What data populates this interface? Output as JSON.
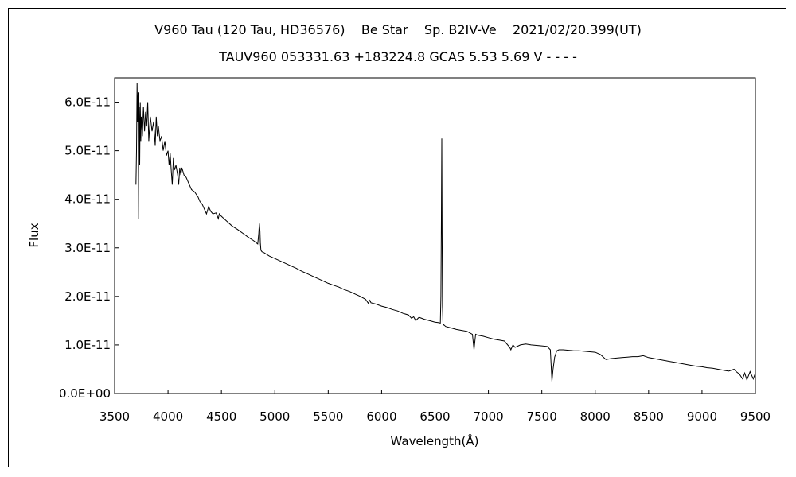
{
  "chart_data": {
    "type": "line",
    "title": "V960 Tau (120 Tau, HD36576)    Be Star    Sp. B2IV-Ve    2021/02/20.399(UT)",
    "subtitle": "TAUV960 053331.63 +183224.8 GCAS 5.53 5.69 V - - - -",
    "xlabel": "Wavelength(Å)",
    "ylabel": "Flux",
    "xlim": [
      3500,
      9500
    ],
    "ylim": [
      0,
      6.5e-11
    ],
    "xticks": [
      3500,
      4000,
      4500,
      5000,
      5500,
      6000,
      6500,
      7000,
      7500,
      8000,
      8500,
      9000,
      9500
    ],
    "xtick_labels": [
      "3500",
      "4000",
      "4500",
      "5000",
      "5500",
      "6000",
      "6500",
      "7000",
      "7500",
      "8000",
      "8500",
      "9000",
      "9500"
    ],
    "yticks": [
      0,
      1e-11,
      2e-11,
      3e-11,
      4e-11,
      5e-11,
      6e-11
    ],
    "ytick_labels": [
      "0.0E+00",
      "1.0E-11",
      "2.0E-11",
      "3.0E-11",
      "4.0E-11",
      "5.0E-11",
      "6.0E-11"
    ],
    "grid": false,
    "legend": "none",
    "line_color": "#000000",
    "series": [
      {
        "x": [
          3700,
          3705,
          3710,
          3715,
          3720,
          3725,
          3730,
          3735,
          3740,
          3745,
          3750,
          3760,
          3770,
          3780,
          3790,
          3800,
          3810,
          3820,
          3835,
          3850,
          3865,
          3880,
          3890,
          3900,
          3910,
          3925,
          3940,
          3955,
          3970,
          3985,
          4000,
          4010,
          4020,
          4030,
          4040,
          4050,
          4060,
          4075,
          4090,
          4100,
          4110,
          4120,
          4130,
          4150,
          4170,
          4200,
          4220,
          4250,
          4280,
          4300,
          4320,
          4340,
          4360,
          4380,
          4400,
          4420,
          4450,
          4471,
          4480,
          4500,
          4550,
          4600,
          4650,
          4700,
          4750,
          4800,
          4840,
          4850,
          4855,
          4861,
          4865,
          4870,
          4880,
          4900,
          4950,
          5000,
          5050,
          5100,
          5150,
          5200,
          5250,
          5300,
          5350,
          5400,
          5450,
          5500,
          5550,
          5600,
          5650,
          5700,
          5750,
          5800,
          5850,
          5875,
          5890,
          5900,
          5950,
          6000,
          6050,
          6100,
          6150,
          6200,
          6250,
          6280,
          6300,
          6320,
          6350,
          6400,
          6450,
          6500,
          6530,
          6550,
          6555,
          6560,
          6563,
          6566,
          6570,
          6575,
          6580,
          6600,
          6650,
          6700,
          6750,
          6800,
          6850,
          6865,
          6870,
          6880,
          6900,
          6950,
          7000,
          7050,
          7100,
          7150,
          7200,
          7210,
          7230,
          7250,
          7300,
          7350,
          7400,
          7450,
          7500,
          7550,
          7580,
          7595,
          7605,
          7620,
          7640,
          7660,
          7700,
          7750,
          7800,
          7850,
          7900,
          7950,
          8000,
          8050,
          8100,
          8150,
          8200,
          8250,
          8300,
          8350,
          8400,
          8450,
          8500,
          8550,
          8600,
          8650,
          8700,
          8750,
          8800,
          8850,
          8900,
          8950,
          9000,
          9050,
          9100,
          9150,
          9200,
          9250,
          9300,
          9320,
          9350,
          9380,
          9400,
          9420,
          9450,
          9480,
          9500
        ],
        "values": [
          4.3e-11,
          5e-11,
          6.4e-11,
          5.6e-11,
          6.2e-11,
          3.6e-11,
          5.9e-11,
          4.7e-11,
          6e-11,
          5.2e-11,
          5.7e-11,
          5.3e-11,
          5.9e-11,
          5.4e-11,
          5.8e-11,
          5.5e-11,
          6e-11,
          5.2e-11,
          5.7e-11,
          5.4e-11,
          5.6e-11,
          5.1e-11,
          5.7e-11,
          5.3e-11,
          5.5e-11,
          5.2e-11,
          5.3e-11,
          5e-11,
          5.2e-11,
          4.9e-11,
          5e-11,
          4.7e-11,
          4.95e-11,
          4.6e-11,
          4.3e-11,
          4.85e-11,
          4.6e-11,
          4.7e-11,
          4.5e-11,
          4.3e-11,
          4.65e-11,
          4.5e-11,
          4.65e-11,
          4.5e-11,
          4.45e-11,
          4.3e-11,
          4.2e-11,
          4.15e-11,
          4.05e-11,
          3.95e-11,
          3.9e-11,
          3.8e-11,
          3.7e-11,
          3.85e-11,
          3.75e-11,
          3.7e-11,
          3.72e-11,
          3.6e-11,
          3.7e-11,
          3.65e-11,
          3.55e-11,
          3.45e-11,
          3.38e-11,
          3.3e-11,
          3.22e-11,
          3.15e-11,
          3.08e-11,
          3.3e-11,
          3.5e-11,
          3.35e-11,
          3.1e-11,
          2.95e-11,
          2.92e-11,
          2.9e-11,
          2.83e-11,
          2.78e-11,
          2.73e-11,
          2.68e-11,
          2.63e-11,
          2.58e-11,
          2.52e-11,
          2.47e-11,
          2.42e-11,
          2.37e-11,
          2.32e-11,
          2.27e-11,
          2.23e-11,
          2.19e-11,
          2.14e-11,
          2.1e-11,
          2.05e-11,
          2e-11,
          1.94e-11,
          1.86e-11,
          1.92e-11,
          1.87e-11,
          1.84e-11,
          1.8e-11,
          1.77e-11,
          1.73e-11,
          1.7e-11,
          1.65e-11,
          1.62e-11,
          1.55e-11,
          1.58e-11,
          1.5e-11,
          1.57e-11,
          1.53e-11,
          1.5e-11,
          1.47e-11,
          1.46e-11,
          1.45e-11,
          2e-11,
          3.6e-11,
          5.25e-11,
          3.3e-11,
          1.8e-11,
          1.4e-11,
          1.42e-11,
          1.38e-11,
          1.35e-11,
          1.32e-11,
          1.3e-11,
          1.28e-11,
          1.22e-11,
          9e-12,
          1e-11,
          1.22e-11,
          1.2e-11,
          1.18e-11,
          1.15e-11,
          1.12e-11,
          1.1e-11,
          1.08e-11,
          9.5e-12,
          9e-12,
          1e-11,
          9.5e-12,
          1e-11,
          1.02e-11,
          1e-11,
          9.9e-12,
          9.8e-12,
          9.7e-12,
          9e-12,
          2.5e-12,
          5e-12,
          7.5e-12,
          8.8e-12,
          9e-12,
          9e-12,
          8.9e-12,
          8.8e-12,
          8.8e-12,
          8.7e-12,
          8.6e-12,
          8.5e-12,
          8e-12,
          7e-12,
          7.2e-12,
          7.3e-12,
          7.4e-12,
          7.5e-12,
          7.6e-12,
          7.6e-12,
          7.8e-12,
          7.4e-12,
          7.2e-12,
          7e-12,
          6.8e-12,
          6.6e-12,
          6.4e-12,
          6.2e-12,
          6e-12,
          5.8e-12,
          5.6e-12,
          5.5e-12,
          5.3e-12,
          5.2e-12,
          5e-12,
          4.8e-12,
          4.6e-12,
          5e-12,
          4.5e-12,
          4e-12,
          3e-12,
          4.2e-12,
          2.8e-12,
          4.5e-12,
          3e-12,
          4.2e-12
        ]
      }
    ]
  }
}
